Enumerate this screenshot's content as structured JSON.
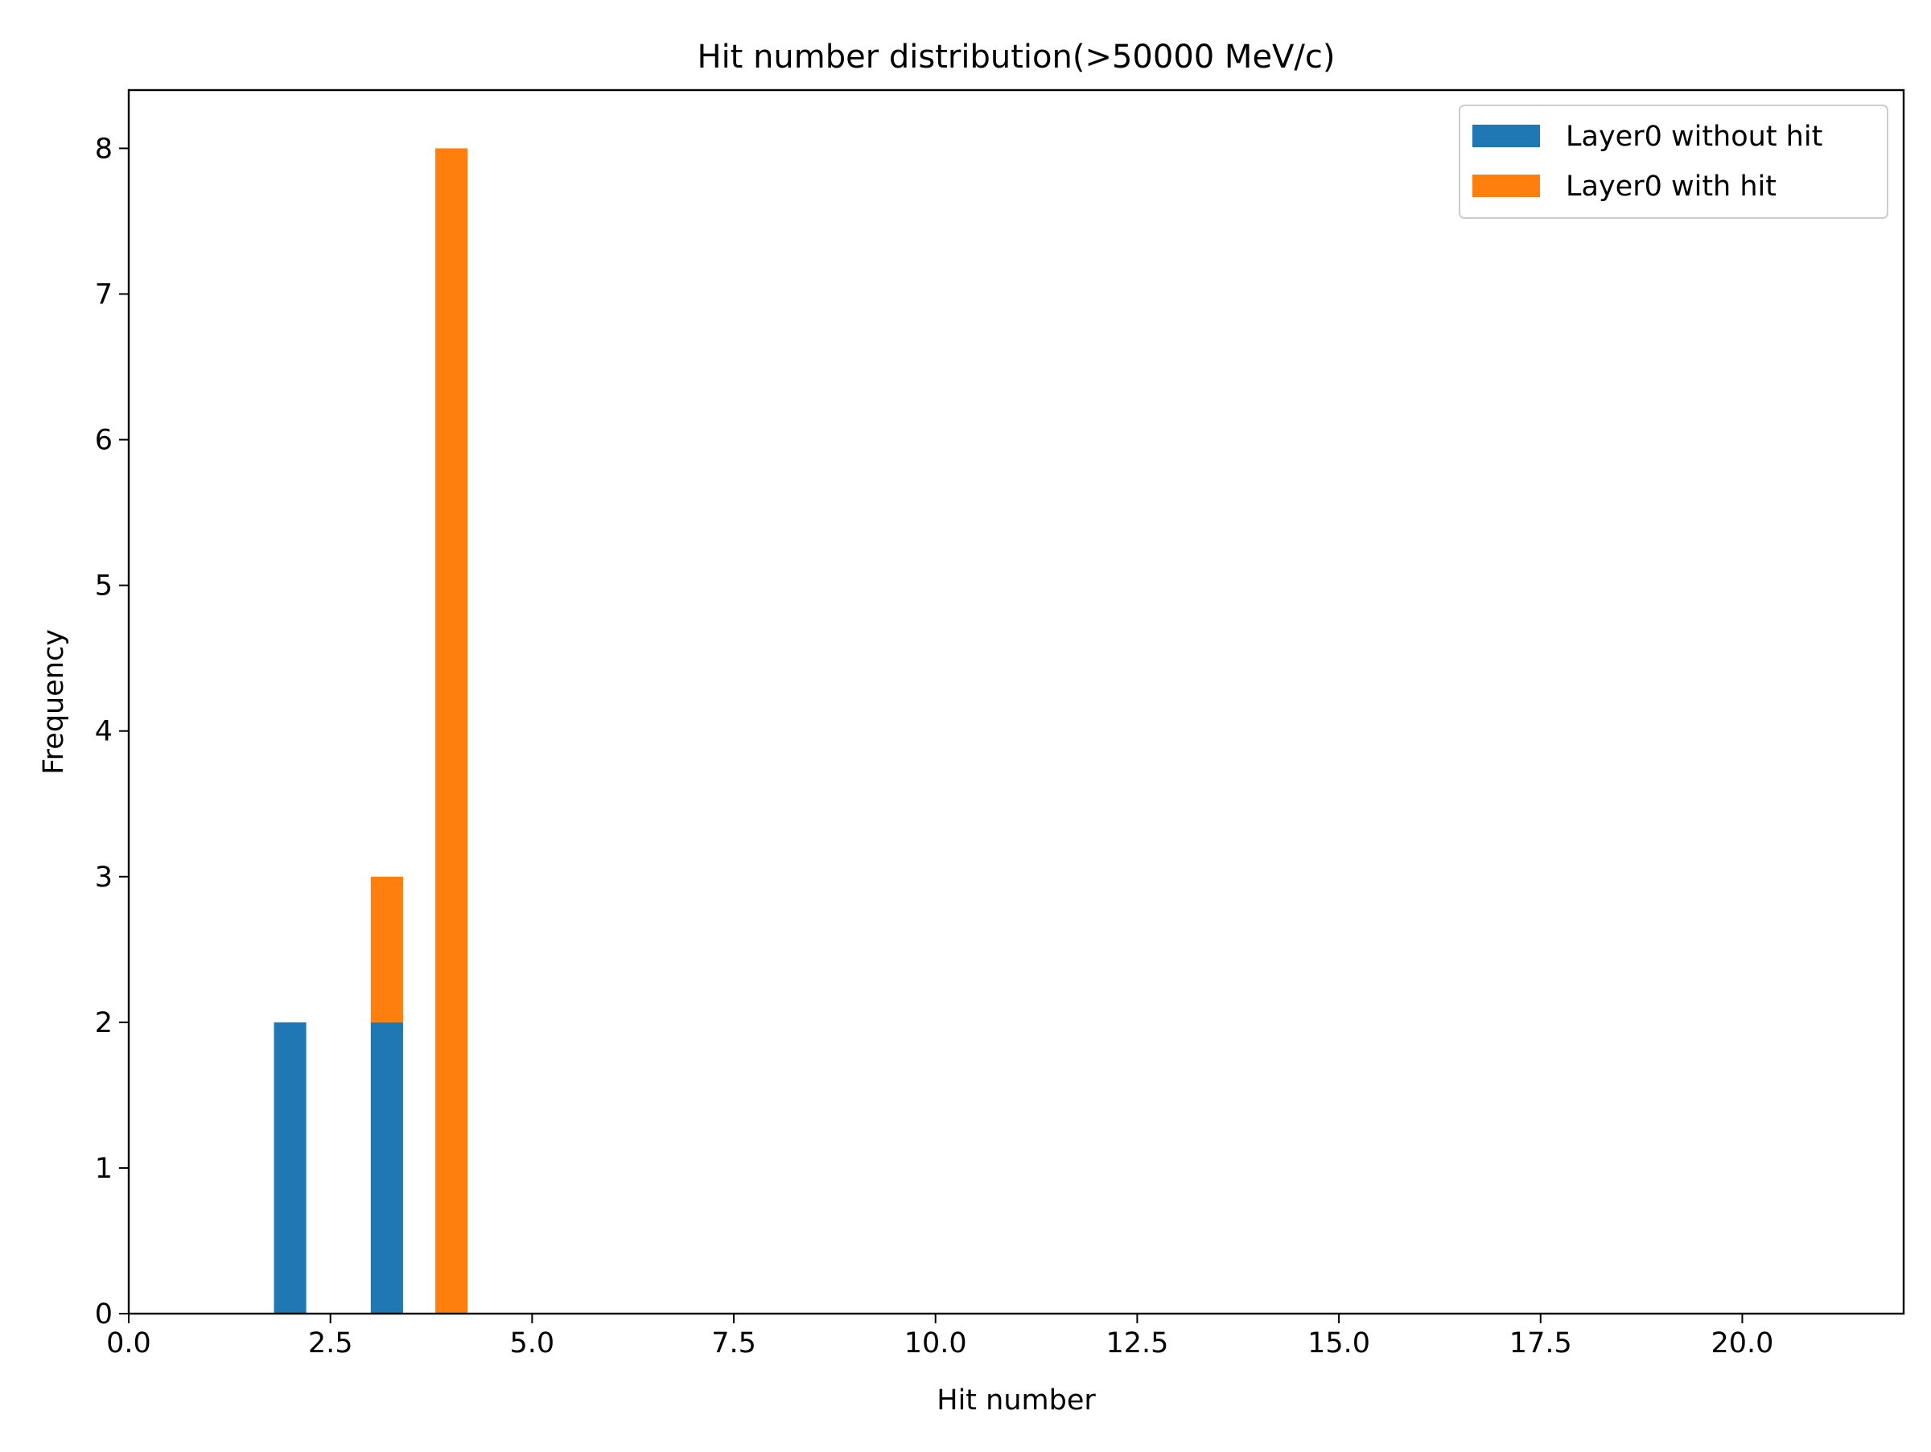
{
  "chart_data": {
    "type": "bar",
    "title": "Hit number distribution(>50000 MeV/c)",
    "xlabel": "Hit number",
    "ylabel": "Frequency",
    "xlim": [
      0,
      22
    ],
    "ylim": [
      0,
      8.4
    ],
    "xticks": [
      "0.0",
      "2.5",
      "5.0",
      "7.5",
      "10.0",
      "12.5",
      "15.0",
      "17.5",
      "20.0"
    ],
    "yticks": [
      "0",
      "1",
      "2",
      "3",
      "4",
      "5",
      "6",
      "7",
      "8"
    ],
    "grid": false,
    "legend_position": "top-right",
    "stacked": true,
    "bin_width": 0.4,
    "series": [
      {
        "name": "Layer0 without hit",
        "color": "#1f77b4",
        "x": [
          2.0,
          3.2,
          4.0
        ],
        "values": [
          2,
          2,
          0
        ]
      },
      {
        "name": "Layer0 with hit",
        "color": "#ff7f0e",
        "x": [
          2.0,
          3.2,
          4.0
        ],
        "values": [
          0,
          1,
          8
        ]
      }
    ]
  }
}
